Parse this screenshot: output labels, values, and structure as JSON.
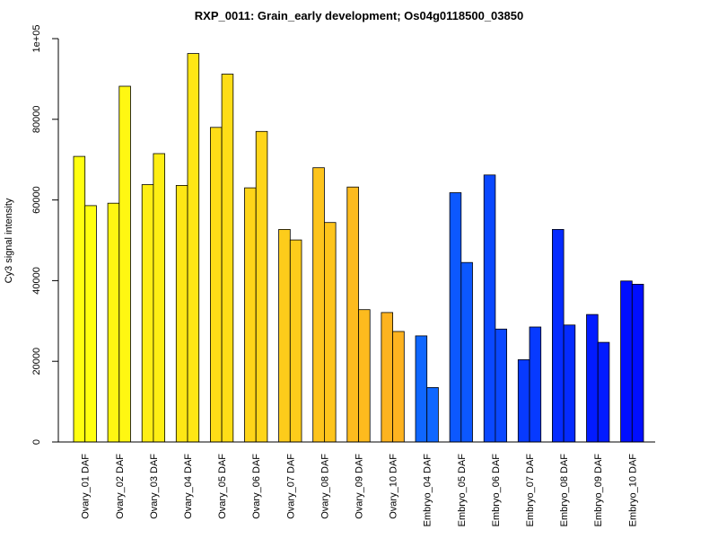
{
  "chart_data": {
    "type": "bar",
    "title": "RXP_0011: Grain_early development; Os04g0118500_03850",
    "xlabel": "",
    "ylabel": "Cy3 signal intensity",
    "ylim": [
      0,
      100000
    ],
    "yticks": [
      "0",
      "20000",
      "40000",
      "60000",
      "80000",
      "1e+05"
    ],
    "ytick_values": [
      0,
      20000,
      40000,
      60000,
      80000,
      100000
    ],
    "grid": false,
    "legend": "none",
    "categories": [
      "Ovary_01 DAF",
      "Ovary_02 DAF",
      "Ovary_03 DAF",
      "Ovary_04 DAF",
      "Ovary_05 DAF",
      "Ovary_06 DAF",
      "Ovary_07 DAF",
      "Ovary_08 DAF",
      "Ovary_09 DAF",
      "Ovary_10 DAF",
      "Embryo_04 DAF",
      "Embryo_05 DAF",
      "Embryo_06 DAF",
      "Embryo_07 DAF",
      "Embryo_08 DAF",
      "Embryo_09 DAF",
      "Embryo_10 DAF"
    ],
    "series": [
      {
        "values": [
          70800,
          59200,
          63800,
          63600,
          78000,
          63000,
          52700,
          68000,
          63200,
          32100,
          26300,
          61800,
          66200,
          20400,
          52700,
          31600,
          39900
        ]
      },
      {
        "values": [
          58600,
          88200,
          71500,
          96300,
          91200,
          77000,
          50100,
          54400,
          32800,
          27400,
          13500,
          44500,
          28000,
          28500,
          29000,
          24700,
          39100
        ]
      }
    ],
    "colors": [
      "#FFFF10",
      "#FFF712",
      "#FEEE14",
      "#FEE615",
      "#FEDD17",
      "#FED519",
      "#FDCC1B",
      "#FDC41C",
      "#FDBB1E",
      "#FDB320",
      "#0F67FF",
      "#0C58FF",
      "#0A48FF",
      "#073AFF",
      "#052BFF",
      "#021BFF",
      "#000EFF"
    ]
  }
}
